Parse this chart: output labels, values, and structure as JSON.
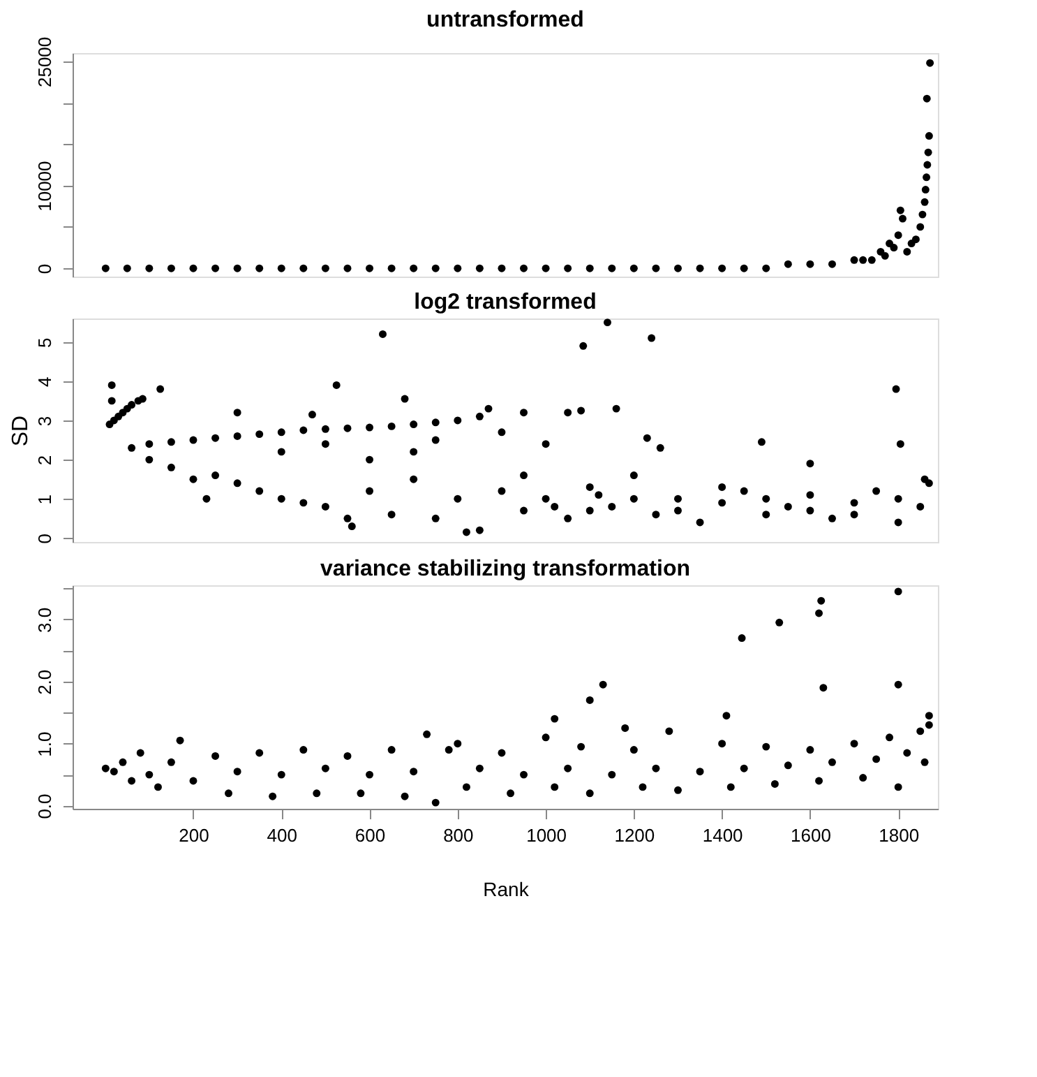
{
  "chart_data": [
    {
      "type": "scatter",
      "title": "untransformed",
      "marker": "circle",
      "grid": false,
      "tick_labels": "y",
      "xlim": [
        -74,
        1890
      ],
      "ylim": [
        -1000,
        26000
      ],
      "yticks": [
        0,
        {
          "value": 5000,
          "label": null
        },
        10000,
        {
          "value": 15000,
          "label": null
        },
        {
          "value": 20000,
          "label": null
        },
        25000
      ],
      "series": [
        {
          "color": "#000000",
          "x": [
            1,
            50,
            100,
            150,
            200,
            250,
            300,
            350,
            400,
            450,
            500,
            550,
            600,
            650,
            700,
            750,
            800,
            850,
            900,
            950,
            1000,
            1050,
            1100,
            1150,
            1200,
            1250,
            1300,
            1350,
            1400,
            1450,
            1500,
            1550,
            1600,
            1650,
            1700,
            1720,
            1740,
            1760,
            1770,
            1780,
            1790,
            1800,
            1805,
            1810,
            1820,
            1830,
            1840,
            1850,
            1855,
            1860,
            1862,
            1864,
            1866,
            1868,
            1870,
            1865,
            1872
          ],
          "values": [
            0,
            0,
            0,
            0,
            0,
            0,
            0,
            0,
            0,
            0,
            0,
            0,
            0,
            0,
            0,
            0,
            0,
            0,
            0,
            0,
            0,
            0,
            0,
            0,
            0,
            0,
            0,
            0,
            0,
            0,
            0,
            500,
            500,
            500,
            1000,
            1000,
            1000,
            2000,
            1500,
            3000,
            2500,
            4000,
            7000,
            6000,
            2000,
            3000,
            3500,
            5000,
            6500,
            8000,
            9500,
            11000,
            12500,
            14000,
            16000,
            20500,
            24800
          ]
        }
      ]
    },
    {
      "type": "scatter",
      "title": "log2 transformed",
      "ylabel": "SD",
      "marker": "circle",
      "grid": false,
      "tick_labels": "y",
      "xlim": [
        -74,
        1890
      ],
      "ylim": [
        -0.1,
        5.6
      ],
      "yticks": [
        0,
        1,
        2,
        3,
        4,
        5
      ],
      "series": [
        {
          "color": "#000000",
          "x": [
            10,
            20,
            30,
            40,
            50,
            60,
            75,
            85,
            15,
            15,
            60,
            100,
            150,
            200,
            250,
            300,
            350,
            400,
            450,
            500,
            550,
            600,
            650,
            700,
            750,
            800,
            850,
            870,
            100,
            150,
            200,
            230,
            250,
            300,
            350,
            400,
            450,
            500,
            550,
            560,
            600,
            650,
            700,
            750,
            800,
            850,
            820,
            900,
            950,
            1000,
            1050,
            1100,
            1150,
            1200,
            1250,
            1300,
            1350,
            1400,
            1450,
            1500,
            1550,
            1600,
            1650,
            1700,
            1750,
            1800,
            1850,
            1870,
            1860,
            400,
            500,
            600,
            700,
            750,
            900,
            950,
            1000,
            1050,
            1080,
            1160,
            1230,
            1260,
            1490,
            1600,
            1805,
            300,
            470,
            630,
            1085,
            1140,
            1240,
            1795,
            525,
            680,
            125,
            950,
            1100,
            1200,
            1300,
            1400,
            1500,
            1600,
            1700,
            1800,
            1020,
            1120
          ],
          "values": [
            2.9,
            3.0,
            3.1,
            3.2,
            3.3,
            3.4,
            3.5,
            3.55,
            3.9,
            3.5,
            2.3,
            2.4,
            2.45,
            2.5,
            2.55,
            2.6,
            2.65,
            2.7,
            2.75,
            2.78,
            2.8,
            2.82,
            2.85,
            2.9,
            2.95,
            3.0,
            3.1,
            3.3,
            2.0,
            1.8,
            1.5,
            1.0,
            1.6,
            1.4,
            1.2,
            1.0,
            0.9,
            0.8,
            0.5,
            0.3,
            1.2,
            0.6,
            1.5,
            0.5,
            1.0,
            0.2,
            0.15,
            1.2,
            0.7,
            1.0,
            0.5,
            1.3,
            0.8,
            1.6,
            0.6,
            1.0,
            0.4,
            0.9,
            1.2,
            0.6,
            0.8,
            1.1,
            0.5,
            0.9,
            1.2,
            0.4,
            0.8,
            1.4,
            1.5,
            2.2,
            2.4,
            2.0,
            2.2,
            2.5,
            2.7,
            3.2,
            2.4,
            3.2,
            3.25,
            3.3,
            2.55,
            2.3,
            2.45,
            1.9,
            2.4,
            3.2,
            3.15,
            5.2,
            4.9,
            5.5,
            5.1,
            3.8,
            3.9,
            3.55,
            3.8,
            1.6,
            0.7,
            1.0,
            0.7,
            1.3,
            1.0,
            0.7,
            0.6,
            1.0,
            0.8,
            1.1
          ]
        }
      ]
    },
    {
      "type": "scatter",
      "title": "variance stabilizing transformation",
      "xlabel": "Rank",
      "marker": "circle",
      "grid": false,
      "xlim": [
        -74,
        1890
      ],
      "ylim": [
        -0.05,
        3.55
      ],
      "xticks": [
        200,
        400,
        600,
        800,
        1000,
        1200,
        1400,
        1600,
        1800
      ],
      "yticks": [
        {
          "value": 0,
          "label": "0.0"
        },
        {
          "value": 0.5,
          "label": null
        },
        {
          "value": 1,
          "label": "1.0"
        },
        {
          "value": 1.5,
          "label": null
        },
        {
          "value": 2,
          "label": "2.0"
        },
        {
          "value": 2.5,
          "label": null
        },
        {
          "value": 3,
          "label": "3.0"
        },
        {
          "value": 3.5,
          "label": null
        }
      ],
      "series": [
        {
          "color": "#000000",
          "x": [
            1,
            20,
            40,
            60,
            80,
            100,
            120,
            150,
            170,
            200,
            250,
            280,
            300,
            350,
            380,
            400,
            450,
            480,
            500,
            550,
            580,
            600,
            650,
            680,
            700,
            730,
            750,
            780,
            800,
            820,
            850,
            900,
            920,
            950,
            1000,
            1020,
            1050,
            1080,
            1100,
            1150,
            1200,
            1220,
            1250,
            1280,
            1300,
            1350,
            1400,
            1420,
            1450,
            1500,
            1520,
            1550,
            1600,
            1620,
            1650,
            1700,
            1720,
            1750,
            1780,
            1800,
            1820,
            1850,
            1860,
            1870,
            1100,
            1130,
            1445,
            1530,
            1620,
            1625,
            1630,
            1800,
            1800,
            1870,
            1020,
            1180,
            1410
          ],
          "values": [
            0.6,
            0.55,
            0.7,
            0.4,
            0.85,
            0.5,
            0.3,
            0.7,
            1.05,
            0.4,
            0.8,
            0.2,
            0.55,
            0.85,
            0.15,
            0.5,
            0.9,
            0.2,
            0.6,
            0.8,
            0.2,
            0.5,
            0.9,
            0.15,
            0.55,
            1.15,
            0.05,
            0.9,
            1.0,
            0.3,
            0.6,
            0.85,
            0.2,
            0.5,
            1.1,
            0.3,
            0.6,
            0.95,
            0.2,
            0.5,
            0.9,
            0.3,
            0.6,
            1.2,
            0.25,
            0.55,
            1.0,
            0.3,
            0.6,
            0.95,
            0.35,
            0.65,
            0.9,
            0.4,
            0.7,
            1.0,
            0.45,
            0.75,
            1.1,
            0.3,
            0.85,
            1.2,
            0.7,
            1.3,
            1.7,
            1.95,
            2.7,
            2.95,
            3.1,
            3.3,
            1.9,
            3.45,
            1.95,
            1.45,
            1.4,
            1.25,
            1.45
          ]
        }
      ]
    }
  ]
}
